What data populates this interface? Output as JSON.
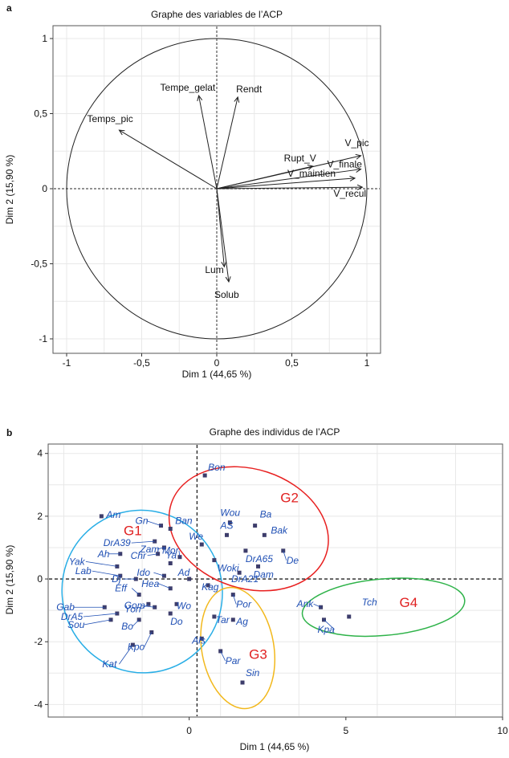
{
  "chart_data": [
    {
      "panel": "a",
      "type": "scatter",
      "title": "Graphe des variables de l’ACP",
      "xlabel": "Dim 1 (44,65 %)",
      "ylabel": "Dim 2 (15,90 %)",
      "xlim": [
        -1.0,
        1.0
      ],
      "ylim": [
        -1.0,
        1.0
      ],
      "xticks": [
        {
          "v": -1,
          "label": "-1"
        },
        {
          "v": -0.5,
          "label": "-0,5"
        },
        {
          "v": 0,
          "label": "0"
        },
        {
          "v": 0.5,
          "label": "0,5"
        },
        {
          "v": 1,
          "label": "1"
        }
      ],
      "yticks": [
        {
          "v": 1,
          "label": "1"
        },
        {
          "v": 0.5,
          "label": "0,5"
        },
        {
          "v": 0,
          "label": "0"
        },
        {
          "v": -0.5,
          "label": "-0,5"
        },
        {
          "v": -1,
          "label": "-1"
        }
      ],
      "grid": true,
      "variables": [
        {
          "name": "Tempe_gelat",
          "x": -0.12,
          "y": 0.62
        },
        {
          "name": "Rendt",
          "x": 0.14,
          "y": 0.61
        },
        {
          "name": "Temps_pic",
          "x": -0.65,
          "y": 0.39
        },
        {
          "name": "Rupt_V",
          "x": 0.64,
          "y": 0.15
        },
        {
          "name": "V_pic",
          "x": 0.96,
          "y": 0.22
        },
        {
          "name": "V_finale",
          "x": 0.96,
          "y": 0.13
        },
        {
          "name": "V_maintien",
          "x": 0.92,
          "y": 0.07
        },
        {
          "name": "V_recul",
          "x": 0.97,
          "y": 0.01
        },
        {
          "name": "Lum",
          "x": 0.05,
          "y": -0.52
        },
        {
          "name": "Solub",
          "x": 0.08,
          "y": -0.62
        }
      ]
    },
    {
      "panel": "b",
      "type": "scatter",
      "title": "Graphe des individus de l’ACP",
      "xlabel": "Dim 1 (44,65 %)",
      "ylabel": "Dim 2 (15,90 %)",
      "xlim": [
        -4.5,
        10.0
      ],
      "ylim": [
        -4.4,
        4.3
      ],
      "xticks": [
        {
          "v": 0,
          "label": "0"
        },
        {
          "v": 5,
          "label": "5"
        },
        {
          "v": 10,
          "label": "10"
        }
      ],
      "yticks": [
        {
          "v": 4,
          "label": "4"
        },
        {
          "v": 2,
          "label": "2"
        },
        {
          "v": 0,
          "label": "0"
        },
        {
          "v": -2,
          "label": "-2"
        },
        {
          "v": -4,
          "label": "-4"
        }
      ],
      "grid": true,
      "individuals": [
        {
          "name": "Bon",
          "x": 0.5,
          "y": 3.3
        },
        {
          "name": "Am",
          "x": -2.8,
          "y": 2.0
        },
        {
          "name": "Gn",
          "x": -0.9,
          "y": 1.7
        },
        {
          "name": "Ban",
          "x": -0.6,
          "y": 1.6
        },
        {
          "name": "DrA39",
          "x": -1.1,
          "y": 1.2
        },
        {
          "name": "Zam",
          "x": -0.8,
          "y": 1.0
        },
        {
          "name": "Ah",
          "x": -2.2,
          "y": 0.8
        },
        {
          "name": "Chr",
          "x": -1.0,
          "y": 0.8
        },
        {
          "name": "Ya",
          "x": -0.6,
          "y": 0.5
        },
        {
          "name": "Mor",
          "x": -0.3,
          "y": 0.7
        },
        {
          "name": "Yak",
          "x": -2.3,
          "y": 0.4
        },
        {
          "name": "Lab",
          "x": -2.2,
          "y": 0.1
        },
        {
          "name": "Dj",
          "x": -1.7,
          "y": 0.0
        },
        {
          "name": "Ido",
          "x": -0.8,
          "y": 0.1
        },
        {
          "name": "Ad",
          "x": 0.0,
          "y": 0.0
        },
        {
          "name": "Eff",
          "x": -1.6,
          "y": -0.5
        },
        {
          "name": "Hea",
          "x": -0.6,
          "y": -0.3
        },
        {
          "name": "Yon",
          "x": -1.3,
          "y": -0.8
        },
        {
          "name": "Gab",
          "x": -2.7,
          "y": -0.9
        },
        {
          "name": "Gom",
          "x": -1.1,
          "y": -0.9
        },
        {
          "name": "Wo",
          "x": -0.4,
          "y": -0.8
        },
        {
          "name": "DrA5",
          "x": -2.3,
          "y": -1.1
        },
        {
          "name": "Bo",
          "x": -1.6,
          "y": -1.3
        },
        {
          "name": "Sou",
          "x": -2.5,
          "y": -1.3
        },
        {
          "name": "Do",
          "x": -0.6,
          "y": -1.1
        },
        {
          "name": "Kpo",
          "x": -1.2,
          "y": -1.7
        },
        {
          "name": "Kat",
          "x": -1.8,
          "y": -2.1
        },
        {
          "name": "Wou",
          "x": 1.3,
          "y": 1.8
        },
        {
          "name": "Ba",
          "x": 2.1,
          "y": 1.7
        },
        {
          "name": "AS",
          "x": 1.2,
          "y": 1.4
        },
        {
          "name": "Bak",
          "x": 2.4,
          "y": 1.4
        },
        {
          "name": "We",
          "x": 0.4,
          "y": 1.1
        },
        {
          "name": "DrA65",
          "x": 1.8,
          "y": 0.9
        },
        {
          "name": "De",
          "x": 3.0,
          "y": 0.9
        },
        {
          "name": "Woki",
          "x": 0.8,
          "y": 0.6
        },
        {
          "name": "Dam",
          "x": 2.2,
          "y": 0.4
        },
        {
          "name": "DrA21",
          "x": 1.6,
          "y": 0.2
        },
        {
          "name": "Kag",
          "x": 0.6,
          "y": -0.2
        },
        {
          "name": "Por",
          "x": 1.4,
          "y": -0.5
        },
        {
          "name": "Tar",
          "x": 0.8,
          "y": -1.2
        },
        {
          "name": "Ag",
          "x": 1.4,
          "y": -1.3
        },
        {
          "name": "Als",
          "x": 0.4,
          "y": -1.9
        },
        {
          "name": "Par",
          "x": 1.0,
          "y": -2.3
        },
        {
          "name": "Sin",
          "x": 1.7,
          "y": -3.3
        },
        {
          "name": "Ank",
          "x": 4.2,
          "y": -0.9
        },
        {
          "name": "Kpa",
          "x": 4.3,
          "y": -1.3
        },
        {
          "name": "Tch",
          "x": 5.1,
          "y": -1.2
        }
      ],
      "groups": [
        {
          "name": "G1",
          "color": "#29aee6",
          "cx": -1.5,
          "cy": -0.4,
          "rx": 2.55,
          "ry": 2.6,
          "rot": -25
        },
        {
          "name": "G2",
          "color": "#e82020",
          "cx": 1.9,
          "cy": 1.6,
          "rx": 2.6,
          "ry": 1.9,
          "rot": 18
        },
        {
          "name": "G3",
          "color": "#f2b81c",
          "cx": 1.55,
          "cy": -2.2,
          "rx": 1.15,
          "ry": 1.95,
          "rot": -10
        },
        {
          "name": "G4",
          "color": "#2fb34a",
          "cx": 6.2,
          "cy": -0.9,
          "rx": 2.6,
          "ry": 0.9,
          "rot": -5
        }
      ]
    }
  ]
}
